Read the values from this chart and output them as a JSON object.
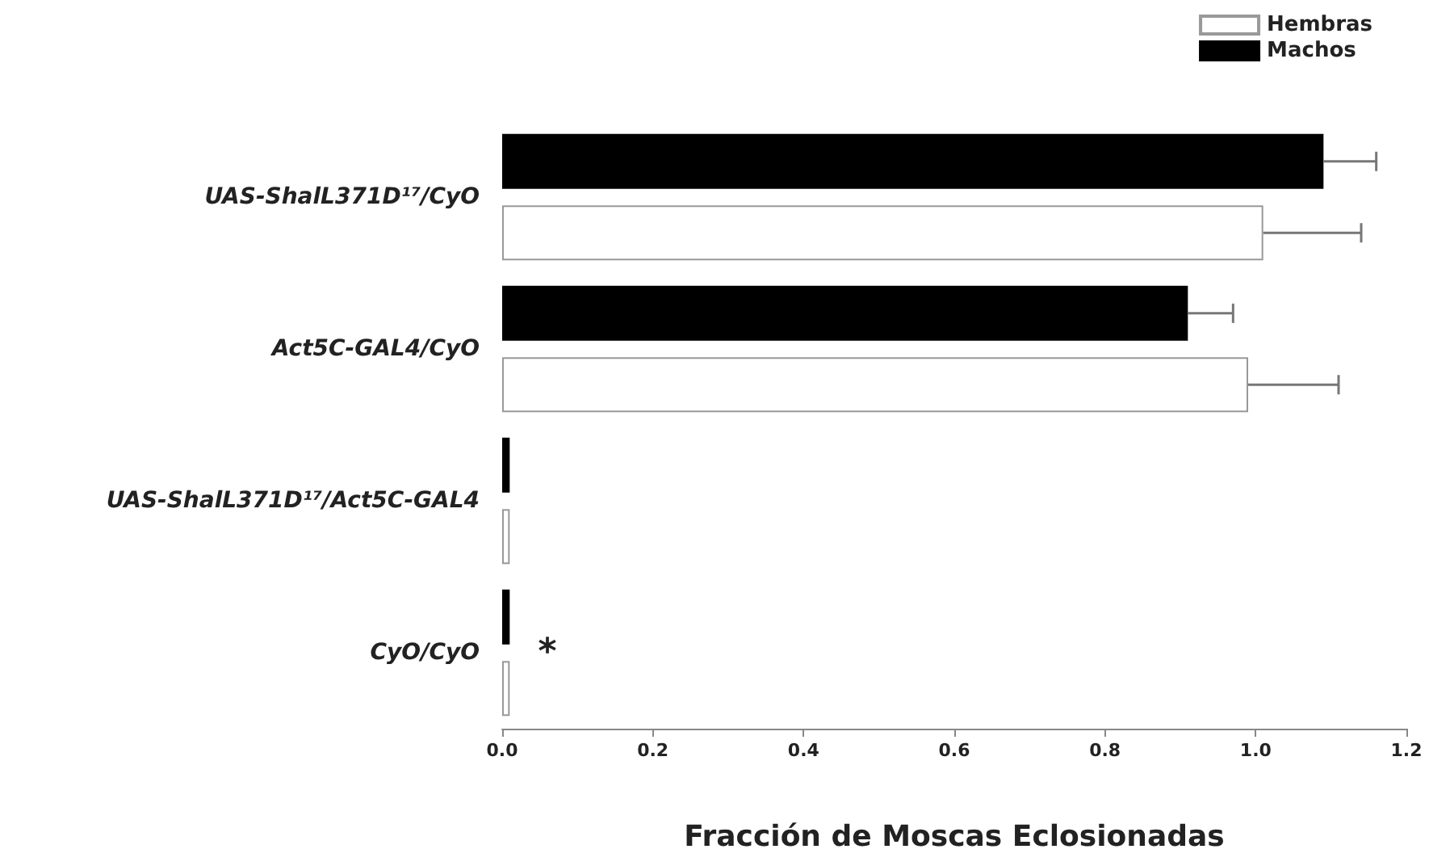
{
  "chart_data": {
    "type": "bar",
    "orientation": "horizontal",
    "xlabel": "Fracción de Moscas Eclosionadas",
    "categories": [
      "UAS-ShalL371D¹⁷/CyO",
      "Act5C-GAL4/CyO",
      "UAS-ShalL371D¹⁷/Act5C-GAL4",
      "CyO/CyO"
    ],
    "series": [
      {
        "name": "Machos",
        "color": "#000000",
        "values": [
          1.09,
          0.91,
          0.01,
          0.01
        ],
        "errors": [
          0.07,
          0.06,
          null,
          null
        ]
      },
      {
        "name": "Hembras",
        "color": "#ffffff",
        "values": [
          1.01,
          0.99,
          0.01,
          0.01
        ],
        "errors": [
          0.13,
          0.12,
          null,
          null
        ]
      }
    ],
    "xlim": [
      0,
      1.2
    ],
    "xticks": [
      {
        "value": 0,
        "label": "0.0"
      },
      0.2,
      0.4,
      0.6,
      0.8,
      {
        "value": 1,
        "label": "1.0"
      },
      1.2
    ],
    "grid": false,
    "legend": "top right",
    "annotations": [
      "*"
    ]
  }
}
